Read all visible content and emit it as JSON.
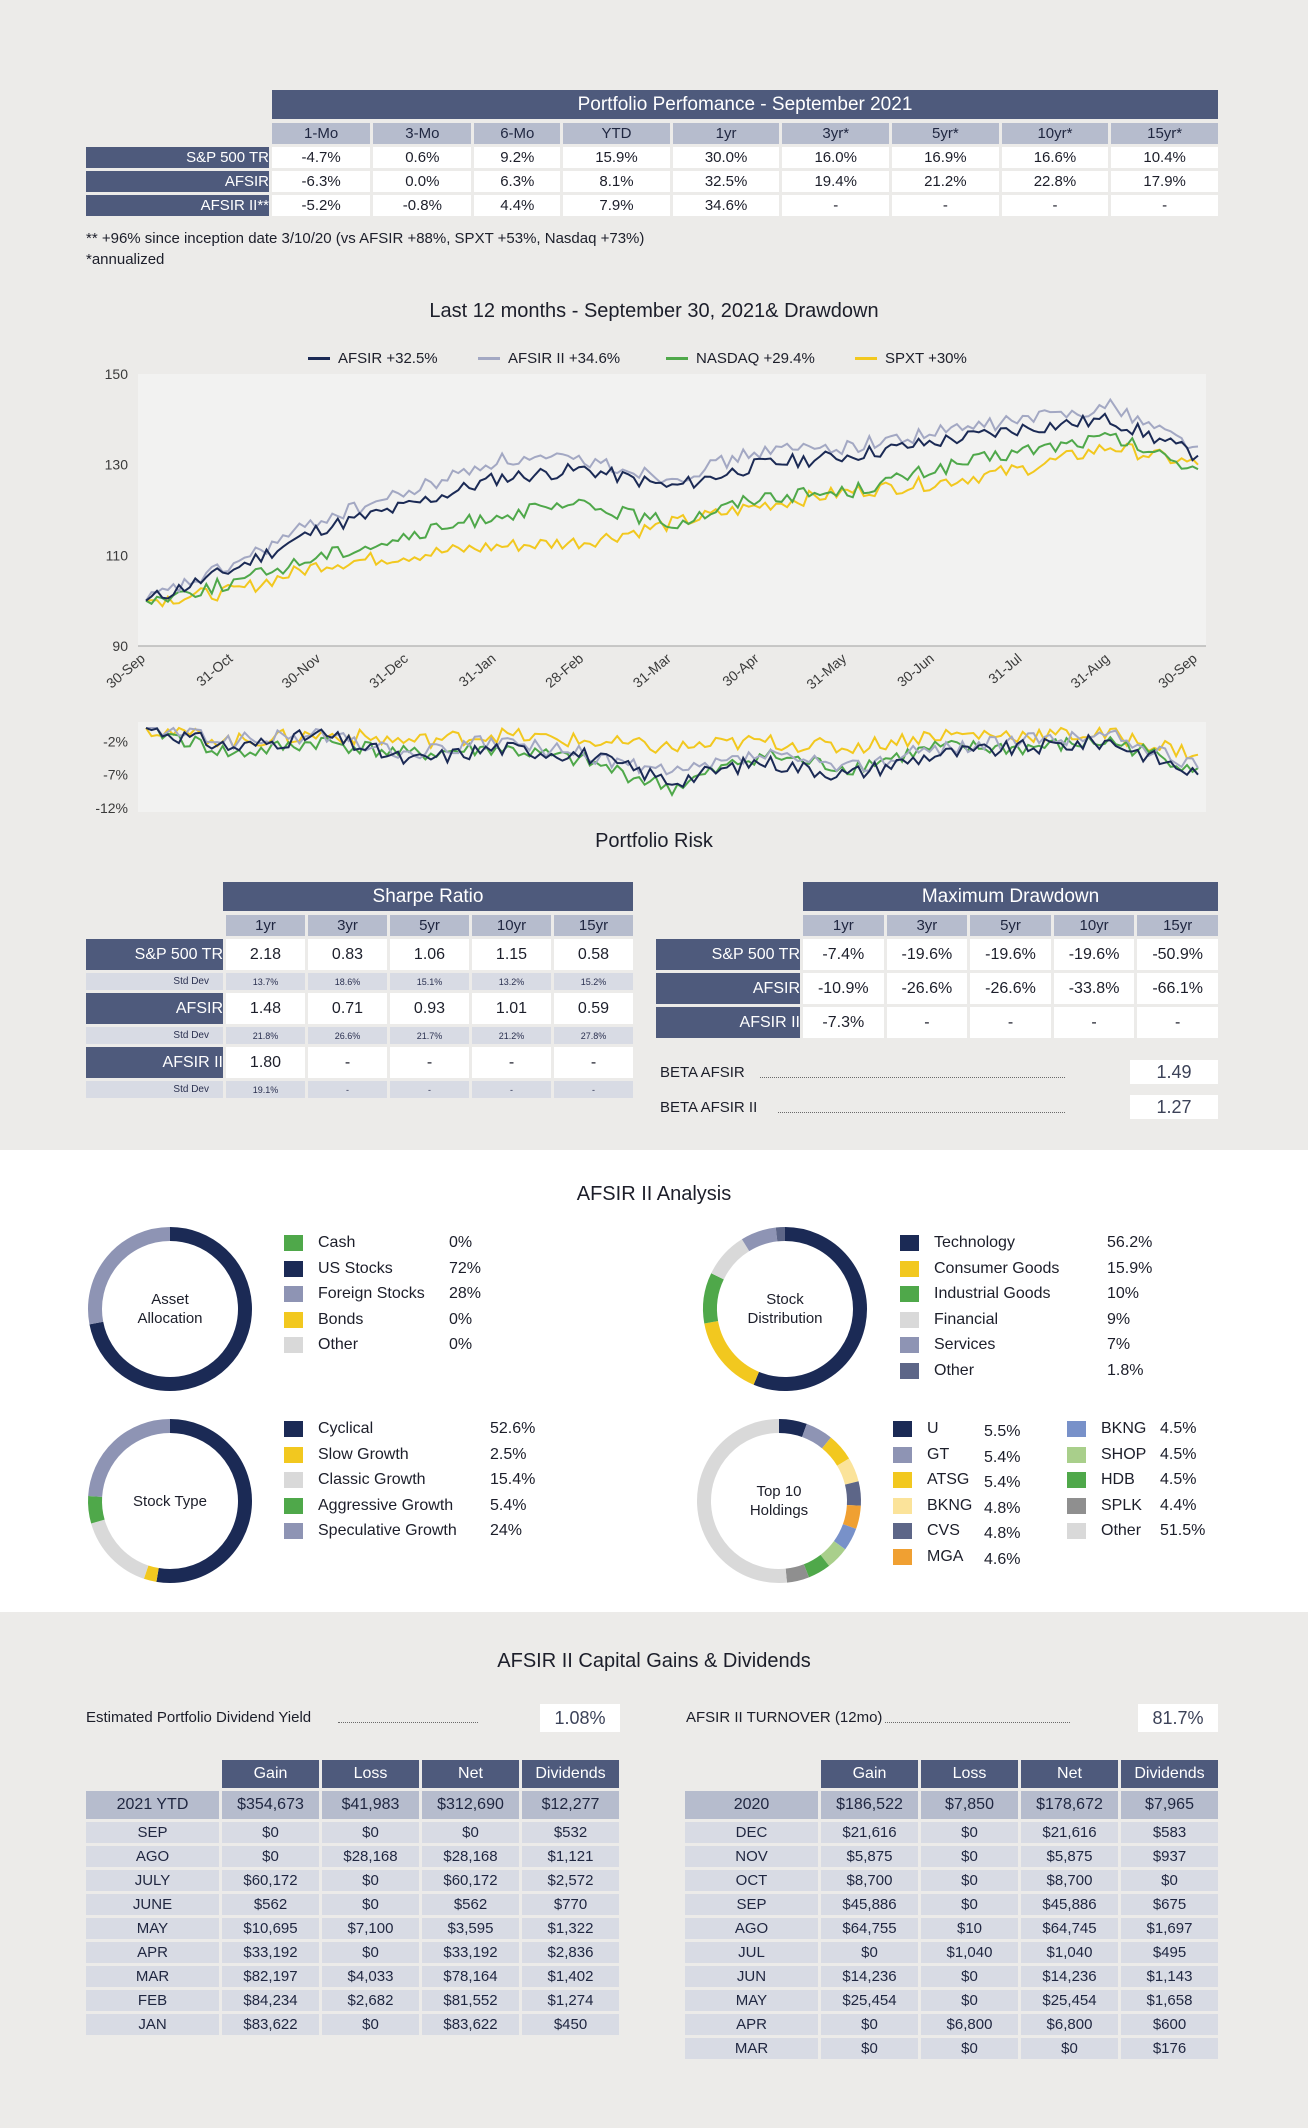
{
  "perf": {
    "title": "Portfolio Perfomance - September 2021",
    "columns": [
      "1-Mo",
      "3-Mo",
      "6-Mo",
      "YTD",
      "1yr",
      "3yr*",
      "5yr*",
      "10yr*",
      "15yr*"
    ],
    "rows": [
      {
        "label": "S&P 500 TR",
        "values": [
          "-4.7%",
          "0.6%",
          "9.2%",
          "15.9%",
          "30.0%",
          "16.0%",
          "16.9%",
          "16.6%",
          "10.4%"
        ]
      },
      {
        "label": "AFSIR",
        "values": [
          "-6.3%",
          "0.0%",
          "6.3%",
          "8.1%",
          "32.5%",
          "19.4%",
          "21.2%",
          "22.8%",
          "17.9%"
        ]
      },
      {
        "label": "AFSIR II**",
        "values": [
          "-5.2%",
          "-0.8%",
          "4.4%",
          "7.9%",
          "34.6%",
          "-",
          "-",
          "-",
          "-"
        ]
      }
    ],
    "note1": "** +96% since inception date 3/10/20 (vs AFSIR +88%, SPXT +53%, Nasdaq +73%)",
    "note2": "*annualized"
  },
  "chart_data": {
    "type": "line",
    "title": "Last 12 months - September 30, 2021& Drawdown",
    "categories": [
      "30-Sep",
      "31-Oct",
      "30-Nov",
      "31-Dec",
      "31-Jan",
      "28-Feb",
      "31-Mar",
      "30-Apr",
      "31-May",
      "30-Jun",
      "31-Jul",
      "31-Aug",
      "30-Sep"
    ],
    "ylim": [
      90,
      150
    ],
    "yticks": [
      "150",
      "130",
      "110",
      "90"
    ],
    "series": [
      {
        "name": "AFSIR +32.5%",
        "color": "#1b2a55",
        "values": [
          100,
          107,
          116,
          121,
          127,
          129,
          125,
          130,
          132,
          135,
          138,
          140,
          132
        ]
      },
      {
        "name": "AFSIR II +34.6%",
        "color": "#a3a8c3",
        "values": [
          100,
          108,
          118,
          124,
          131,
          131,
          127,
          133,
          134,
          137,
          140,
          143,
          134
        ]
      },
      {
        "name": "NASDAQ +29.4%",
        "color": "#4fa84a",
        "values": [
          100,
          104,
          110,
          114,
          119,
          121,
          117,
          123,
          124,
          129,
          133,
          136,
          129
        ]
      },
      {
        "name": "SPXT +30%",
        "color": "#f2c81f",
        "values": [
          100,
          102,
          108,
          110,
          112,
          113,
          117,
          121,
          124,
          126,
          129,
          134,
          130
        ]
      }
    ],
    "drawdown": {
      "yticks": [
        "-2%",
        "-7%",
        "-12%"
      ],
      "ylim": [
        -12,
        0
      ],
      "series": [
        {
          "name": "AFSIR",
          "color": "#1b2a55",
          "values": [
            0,
            -3,
            -1,
            -5,
            -3,
            -4,
            -8,
            -5,
            -7,
            -4,
            -3,
            -2,
            -7
          ]
        },
        {
          "name": "AFSIR II",
          "color": "#a3a8c3",
          "values": [
            0,
            -2,
            -1,
            -4,
            -2,
            -4,
            -7,
            -4,
            -6,
            -3,
            -2,
            -1,
            -6
          ]
        },
        {
          "name": "NASDAQ",
          "color": "#4fa84a",
          "values": [
            0,
            -4,
            -2,
            -4,
            -3,
            -5,
            -9,
            -4,
            -6,
            -3,
            -3,
            -2,
            -6
          ]
        },
        {
          "name": "SPXT",
          "color": "#f2c81f",
          "values": [
            0,
            -2,
            -1,
            -2,
            -1,
            -2,
            -3,
            -2,
            -3,
            -1,
            -1,
            -1,
            -4
          ]
        }
      ]
    }
  },
  "risk": {
    "title": "Portfolio Risk",
    "sharpe": {
      "title": "Sharpe Ratio",
      "columns": [
        "1yr",
        "3yr",
        "5yr",
        "10yr",
        "15yr"
      ],
      "rows": [
        {
          "label": "S&P 500 TR",
          "values": [
            "2.18",
            "0.83",
            "1.06",
            "1.15",
            "0.58"
          ],
          "std": [
            "13.7%",
            "18.6%",
            "15.1%",
            "13.2%",
            "15.2%"
          ]
        },
        {
          "label": "AFSIR",
          "values": [
            "1.48",
            "0.71",
            "0.93",
            "1.01",
            "0.59"
          ],
          "std": [
            "21.8%",
            "26.6%",
            "21.7%",
            "21.2%",
            "27.8%"
          ]
        },
        {
          "label": "AFSIR II",
          "values": [
            "1.80",
            "-",
            "-",
            "-",
            "-"
          ],
          "std": [
            "19.1%",
            "-",
            "-",
            "-",
            "-"
          ]
        }
      ],
      "std_label": "Std Dev"
    },
    "drawdown": {
      "title": "Maximum Drawdown",
      "columns": [
        "1yr",
        "3yr",
        "5yr",
        "10yr",
        "15yr"
      ],
      "rows": [
        {
          "label": "S&P 500 TR",
          "values": [
            "-7.4%",
            "-19.6%",
            "-19.6%",
            "-19.6%",
            "-50.9%"
          ]
        },
        {
          "label": "AFSIR",
          "values": [
            "-10.9%",
            "-26.6%",
            "-26.6%",
            "-33.8%",
            "-66.1%"
          ]
        },
        {
          "label": "AFSIR II",
          "values": [
            "-7.3%",
            "-",
            "-",
            "-",
            "-"
          ]
        }
      ]
    },
    "beta1_label": "BETA AFSIR",
    "beta1_value": "1.49",
    "beta2_label": "BETA AFSIR II",
    "beta2_value": "1.27"
  },
  "analysis": {
    "title": "AFSIR II Analysis",
    "asset": {
      "center": [
        "Asset",
        "Allocation"
      ],
      "items": [
        {
          "label": "Cash",
          "pct": "0%",
          "value": 0,
          "color": "#4fa84a"
        },
        {
          "label": "US Stocks",
          "pct": "72%",
          "value": 72,
          "color": "#1b2a55"
        },
        {
          "label": "Foreign Stocks",
          "pct": "28%",
          "value": 28,
          "color": "#8e94b4"
        },
        {
          "label": "Bonds",
          "pct": "0%",
          "value": 0,
          "color": "#f2c81f"
        },
        {
          "label": "Other",
          "pct": "0%",
          "value": 0,
          "color": "#d9d9d9"
        }
      ]
    },
    "stock": {
      "center": [
        "Stock",
        "Distribution"
      ],
      "items": [
        {
          "label": "Technology",
          "pct": "56.2%",
          "value": 56.2,
          "color": "#1b2a55"
        },
        {
          "label": "Consumer Goods",
          "pct": "15.9%",
          "value": 15.9,
          "color": "#f2c81f"
        },
        {
          "label": "Industrial Goods",
          "pct": "10%",
          "value": 10,
          "color": "#4fa84a"
        },
        {
          "label": "Financial",
          "pct": "9%",
          "value": 9,
          "color": "#d9d9d9"
        },
        {
          "label": "Services",
          "pct": "7%",
          "value": 7,
          "color": "#8e94b4"
        },
        {
          "label": "Other",
          "pct": "1.8%",
          "value": 1.8,
          "color": "#5d6688"
        }
      ]
    },
    "type": {
      "center": [
        "Stock Type"
      ],
      "items": [
        {
          "label": "Cyclical",
          "pct": "52.6%",
          "value": 52.6,
          "color": "#1b2a55"
        },
        {
          "label": "Slow Growth",
          "pct": "2.5%",
          "value": 2.5,
          "color": "#f2c81f"
        },
        {
          "label": "Classic Growth",
          "pct": "15.4%",
          "value": 15.4,
          "color": "#d9d9d9"
        },
        {
          "label": "Aggressive Growth",
          "pct": "5.4%",
          "value": 5.4,
          "color": "#4fa84a"
        },
        {
          "label": "Speculative Growth",
          "pct": "24%",
          "value": 24,
          "color": "#8e94b4"
        }
      ]
    },
    "top10": {
      "center": [
        "Top 10",
        "Holdings"
      ],
      "items": [
        {
          "label": "U",
          "pct": "5.5%",
          "value": 5.5,
          "color": "#1b2a55"
        },
        {
          "label": "GT",
          "pct": "5.4%",
          "value": 5.4,
          "color": "#8e94b4"
        },
        {
          "label": "ATSG",
          "pct": "5.4%",
          "value": 5.4,
          "color": "#f2c81f"
        },
        {
          "label": "BKNG",
          "pct": "4.8%",
          "value": 4.8,
          "color": "#fbe39a"
        },
        {
          "label": "CVS",
          "pct": "4.8%",
          "value": 4.8,
          "color": "#5d6688"
        },
        {
          "label": "MGA",
          "pct": "4.6%",
          "value": 4.6,
          "color": "#f0a032"
        },
        {
          "label": "BKNG",
          "pct": "4.5%",
          "value": 4.5,
          "color": "#7891c9"
        },
        {
          "label": "SHOP",
          "pct": "4.5%",
          "value": 4.5,
          "color": "#a9cf8b"
        },
        {
          "label": "HDB",
          "pct": "4.5%",
          "value": 4.5,
          "color": "#4fa84a"
        },
        {
          "label": "SPLK",
          "pct": "4.4%",
          "value": 4.4,
          "color": "#8f8f8f"
        },
        {
          "label": "Other",
          "pct": "51.5%",
          "value": 51.5,
          "color": "#d9d9d9"
        }
      ]
    }
  },
  "gains": {
    "title": "AFSIR II Capital Gains & Dividends",
    "yield_label": "Estimated Portfolio Dividend Yield",
    "yield_value": "1.08%",
    "turnover_label": "AFSIR II TURNOVER (12mo)",
    "turnover_value": "81.7%",
    "columns": [
      "Gain",
      "Loss",
      "Net",
      "Dividends"
    ],
    "left": [
      [
        "2021 YTD",
        "$354,673",
        "$41,983",
        "$312,690",
        "$12,277"
      ],
      [
        "SEP",
        "$0",
        "$0",
        "$0",
        "$532"
      ],
      [
        "AGO",
        "$0",
        "$28,168",
        "$28,168",
        "$1,121"
      ],
      [
        "JULY",
        "$60,172",
        "$0",
        "$60,172",
        "$2,572"
      ],
      [
        "JUNE",
        "$562",
        "$0",
        "$562",
        "$770"
      ],
      [
        "MAY",
        "$10,695",
        "$7,100",
        "$3,595",
        "$1,322"
      ],
      [
        "APR",
        "$33,192",
        "$0",
        "$33,192",
        "$2,836"
      ],
      [
        "MAR",
        "$82,197",
        "$4,033",
        "$78,164",
        "$1,402"
      ],
      [
        "FEB",
        "$84,234",
        "$2,682",
        "$81,552",
        "$1,274"
      ],
      [
        "JAN",
        "$83,622",
        "$0",
        "$83,622",
        "$450"
      ]
    ],
    "right": [
      [
        "2020",
        "$186,522",
        "$7,850",
        "$178,672",
        "$7,965"
      ],
      [
        "DEC",
        "$21,616",
        "$0",
        "$21,616",
        "$583"
      ],
      [
        "NOV",
        "$5,875",
        "$0",
        "$5,875",
        "$937"
      ],
      [
        "OCT",
        "$8,700",
        "$0",
        "$8,700",
        "$0"
      ],
      [
        "SEP",
        "$45,886",
        "$0",
        "$45,886",
        "$675"
      ],
      [
        "AGO",
        "$64,755",
        "$10",
        "$64,745",
        "$1,697"
      ],
      [
        "JUL",
        "$0",
        "$1,040",
        "$1,040",
        "$495"
      ],
      [
        "JUN",
        "$14,236",
        "$0",
        "$14,236",
        "$1,143"
      ],
      [
        "MAY",
        "$25,454",
        "$0",
        "$25,454",
        "$1,658"
      ],
      [
        "APR",
        "$0",
        "$6,800",
        "$6,800",
        "$600"
      ],
      [
        "MAR",
        "$0",
        "$0",
        "$0",
        "$176"
      ]
    ]
  }
}
